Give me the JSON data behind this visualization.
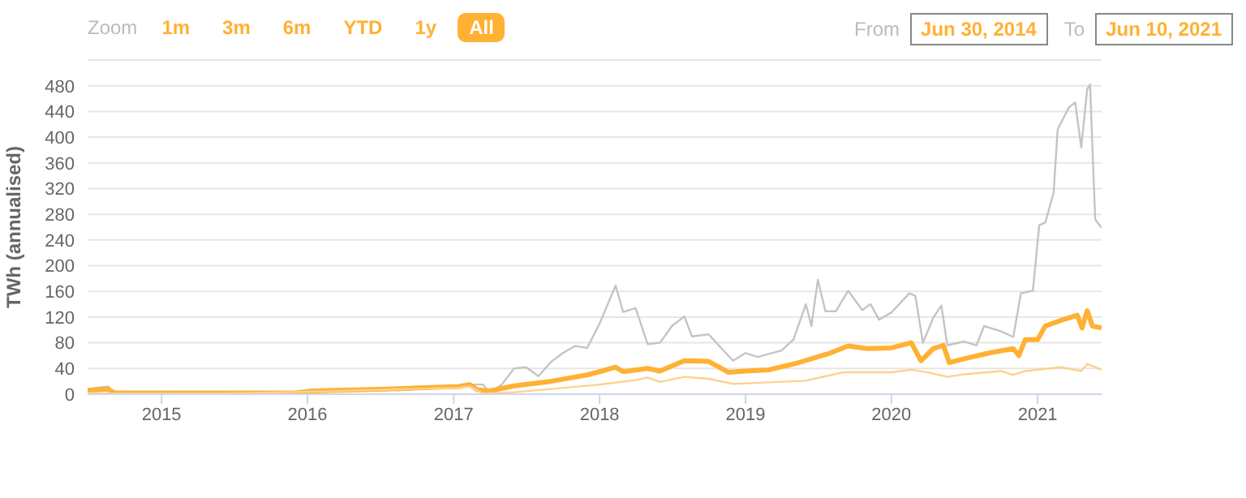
{
  "chart_data": {
    "type": "line",
    "ylabel": "TWh (annualised)",
    "annotations": [
      "Zoom",
      "1m",
      "3m",
      "6m",
      "YTD",
      "1y",
      "All",
      "From",
      "Jun 30, 2014",
      "To",
      "Jun 10, 2021"
    ],
    "xlim": [
      "2014-06-30",
      "2021-06-10"
    ],
    "xticks": [
      "2015",
      "2016",
      "2017",
      "2018",
      "2019",
      "2020",
      "2021"
    ],
    "ylim": [
      0,
      520
    ],
    "yticks": [
      0,
      40,
      80,
      120,
      160,
      200,
      240,
      280,
      320,
      360,
      400,
      440,
      480
    ],
    "grid": "y",
    "marker": "none",
    "line_style": "solid",
    "series": [
      {
        "color": "#c4c4c4",
        "x": [
          "2014-06-30",
          "2014-08-20",
          "2014-09-05",
          "2014-10-01",
          "2015-06-01",
          "2015-12-01",
          "2016-01-15",
          "2016-07-15",
          "2016-08-15",
          "2017-01-15",
          "2017-02-10",
          "2017-03-15",
          "2017-04-01",
          "2017-05-01",
          "2017-06-01",
          "2017-07-01",
          "2017-08-01",
          "2017-09-01",
          "2017-10-01",
          "2017-11-01",
          "2017-12-01",
          "2018-01-01",
          "2018-02-10",
          "2018-03-01",
          "2018-04-01",
          "2018-05-01",
          "2018-06-01",
          "2018-07-01",
          "2018-08-01",
          "2018-08-20",
          "2018-10-01",
          "2018-11-01",
          "2018-12-01",
          "2019-01-01",
          "2019-02-01",
          "2019-04-01",
          "2019-05-01",
          "2019-06-01",
          "2019-06-15",
          "2019-07-01",
          "2019-07-20",
          "2019-08-15",
          "2019-09-15",
          "2019-10-20",
          "2019-11-10",
          "2019-12-01",
          "2020-01-01",
          "2020-02-15",
          "2020-03-01",
          "2020-03-20",
          "2020-04-15",
          "2020-05-05",
          "2020-05-20",
          "2020-07-01",
          "2020-08-01",
          "2020-08-20",
          "2020-10-01",
          "2020-11-01",
          "2020-11-20",
          "2020-12-20",
          "2021-01-05",
          "2021-01-20",
          "2021-02-10",
          "2021-02-20",
          "2021-03-20",
          "2021-04-05",
          "2021-04-20",
          "2021-05-05",
          "2021-05-12",
          "2021-05-25",
          "2021-06-10"
        ],
        "values": [
          8,
          12,
          2,
          2,
          2,
          2,
          5,
          8,
          6,
          12,
          15,
          15,
          2,
          15,
          40,
          42,
          28,
          50,
          64,
          75,
          72,
          110,
          169,
          128,
          134,
          78,
          80,
          106,
          121,
          90,
          93,
          72,
          52,
          64,
          58,
          68,
          85,
          140,
          106,
          178,
          129,
          129,
          161,
          131,
          140,
          116,
          127,
          157,
          153,
          80,
          119,
          138,
          76,
          82,
          76,
          106,
          98,
          89,
          157,
          161,
          263,
          267,
          314,
          412,
          446,
          454,
          384,
          475,
          482,
          272,
          259
        ]
      },
      {
        "color": "#ffb133",
        "x": [
          "2014-06-30",
          "2014-08-20",
          "2014-09-05",
          "2015-06-01",
          "2015-12-01",
          "2016-01-15",
          "2016-07-15",
          "2017-01-15",
          "2017-02-10",
          "2017-03-01",
          "2017-04-01",
          "2017-06-01",
          "2017-09-01",
          "2017-12-01",
          "2018-01-01",
          "2018-02-10",
          "2018-03-01",
          "2018-05-01",
          "2018-06-01",
          "2018-08-01",
          "2018-10-01",
          "2018-11-20",
          "2019-01-01",
          "2019-03-01",
          "2019-05-01",
          "2019-06-15",
          "2019-08-01",
          "2019-09-15",
          "2019-11-01",
          "2020-01-01",
          "2020-02-20",
          "2020-03-15",
          "2020-04-15",
          "2020-05-10",
          "2020-05-25",
          "2020-07-01",
          "2020-09-01",
          "2020-11-01",
          "2020-11-15",
          "2020-12-01",
          "2021-01-01",
          "2021-01-20",
          "2021-03-01",
          "2021-04-10",
          "2021-04-22",
          "2021-05-05",
          "2021-05-18",
          "2021-06-10"
        ],
        "values": [
          6,
          8,
          2,
          2,
          2,
          5,
          8,
          12,
          15,
          7,
          5,
          13,
          20,
          30,
          35,
          42,
          35,
          40,
          36,
          52,
          51,
          34,
          36,
          38,
          47,
          55,
          64,
          75,
          71,
          72,
          80,
          52,
          71,
          76,
          49,
          55,
          64,
          71,
          60,
          85,
          85,
          106,
          115,
          123,
          103,
          130,
          106,
          103
        ]
      },
      {
        "color": "#fcd28f",
        "x": [
          "2014-06-30",
          "2014-09-05",
          "2015-06-01",
          "2016-01-15",
          "2016-07-15",
          "2017-01-15",
          "2017-02-10",
          "2017-03-15",
          "2017-06-01",
          "2017-09-01",
          "2018-01-01",
          "2018-04-01",
          "2018-05-01",
          "2018-06-01",
          "2018-08-01",
          "2018-10-01",
          "2018-12-01",
          "2019-06-01",
          "2019-09-01",
          "2020-01-01",
          "2020-02-20",
          "2020-04-01",
          "2020-05-20",
          "2020-07-01",
          "2020-10-01",
          "2020-11-01",
          "2020-12-01",
          "2021-03-01",
          "2021-04-20",
          "2021-05-05",
          "2021-06-10"
        ],
        "values": [
          2,
          1,
          1,
          4,
          7,
          10,
          12,
          1,
          3,
          8,
          15,
          22,
          26,
          19,
          27,
          24,
          16,
          21,
          34,
          34,
          38,
          34,
          27,
          31,
          36,
          30,
          36,
          42,
          36,
          47,
          38
        ]
      }
    ]
  }
}
